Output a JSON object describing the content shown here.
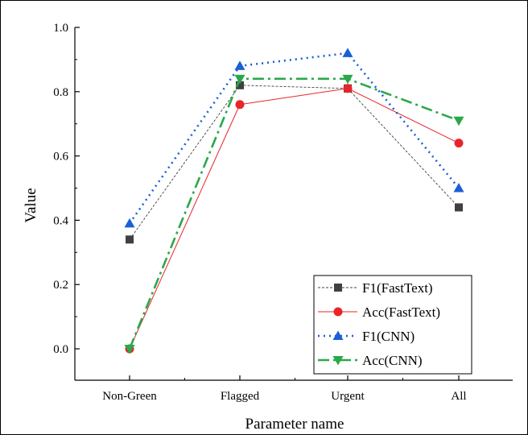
{
  "chart_data": {
    "type": "line",
    "title": "",
    "xlabel": "Parameter name",
    "ylabel": "Value",
    "categories": [
      "Non-Green",
      "Flagged",
      "Urgent",
      "All"
    ],
    "ylim": [
      0.0,
      1.0
    ],
    "yticks": [
      "0.0",
      "0.2",
      "0.4",
      "0.6",
      "0.8",
      "1.0"
    ],
    "grid": false,
    "legend_position": "bottom-right",
    "series": [
      {
        "name": "F1(FastText)",
        "values": [
          0.34,
          0.82,
          0.81,
          0.44
        ],
        "color": "#404040",
        "marker": "square",
        "line_style": "short-dash"
      },
      {
        "name": "Acc(FastText)",
        "values": [
          0.0,
          0.76,
          0.81,
          0.64
        ],
        "color": "#e8252a",
        "marker": "circle",
        "line_style": "solid"
      },
      {
        "name": "F1(CNN)",
        "values": [
          0.39,
          0.88,
          0.92,
          0.5
        ],
        "color": "#1a5fd6",
        "marker": "triangle-up",
        "line_style": "dot"
      },
      {
        "name": "Acc(CNN)",
        "values": [
          0.0,
          0.84,
          0.84,
          0.71
        ],
        "color": "#2aa84a",
        "marker": "triangle-down",
        "line_style": "dash-dot"
      }
    ]
  }
}
